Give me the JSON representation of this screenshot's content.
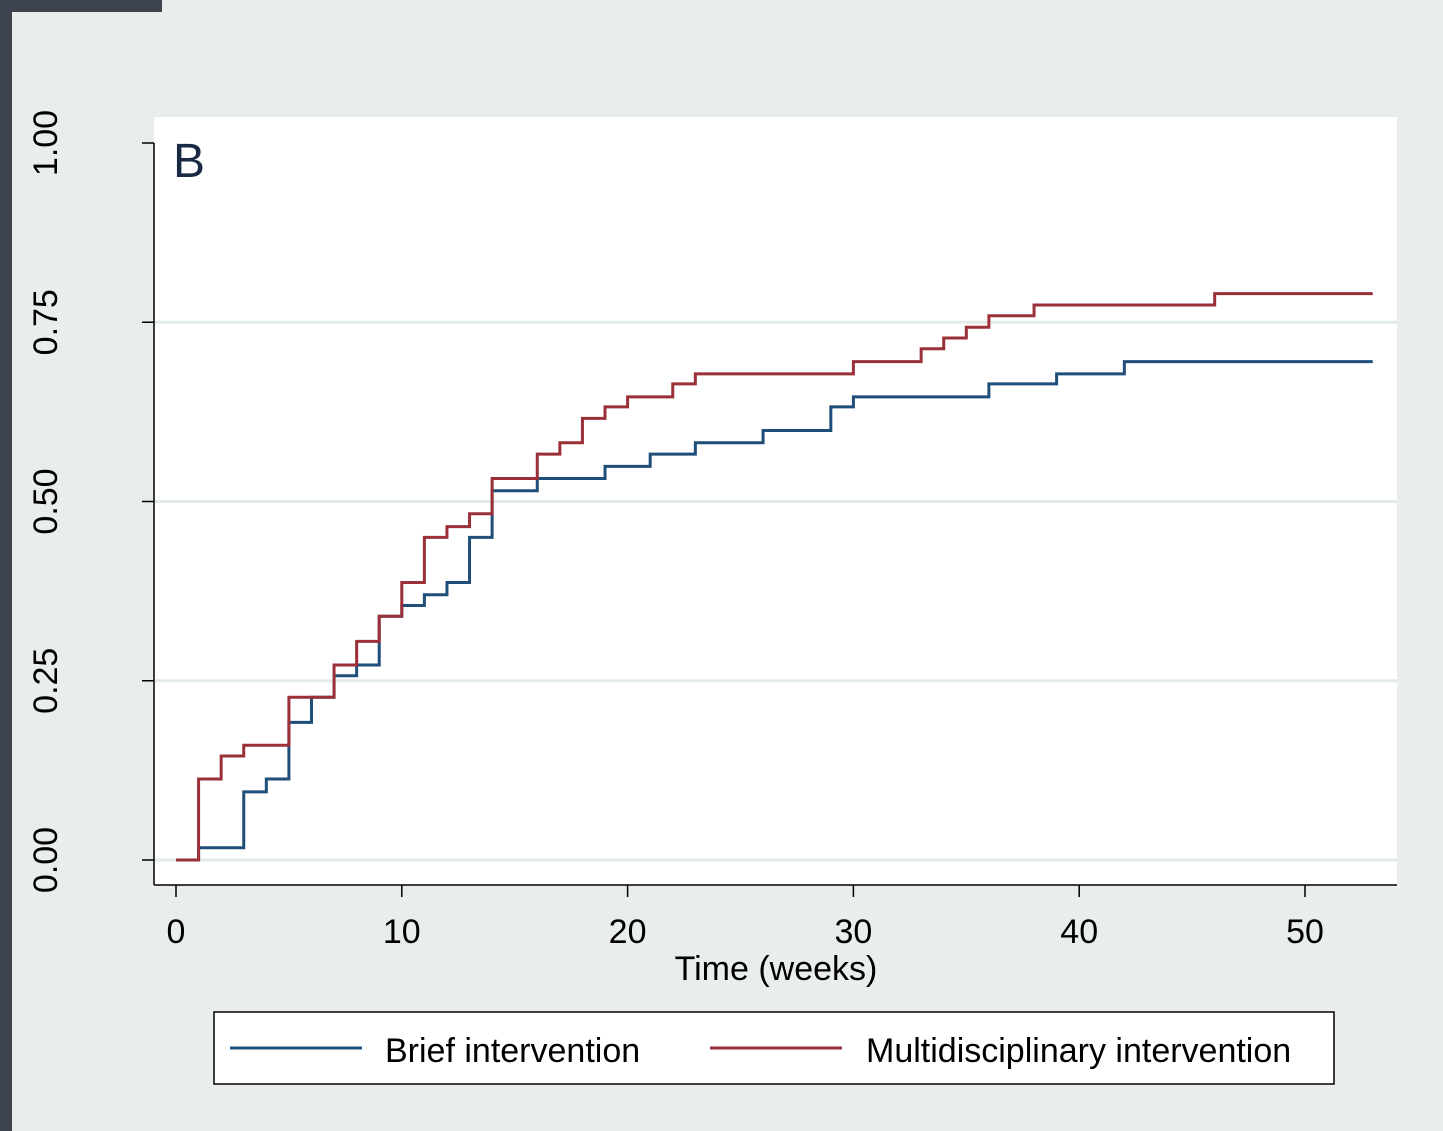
{
  "chart_data": {
    "type": "line",
    "step": true,
    "panel_label": "B",
    "title": "",
    "xlabel": "Time (weeks)",
    "ylabel": "",
    "xlim": [
      -1,
      54
    ],
    "ylim": [
      -0.01,
      1.0
    ],
    "xticks": [
      0,
      10,
      20,
      30,
      40,
      50
    ],
    "yticks": [
      0.0,
      0.25,
      0.5,
      0.75,
      1.0
    ],
    "xtick_labels": [
      "0",
      "10",
      "20",
      "30",
      "40",
      "50"
    ],
    "ytick_labels": [
      "0.00",
      "0.25",
      "0.50",
      "0.75",
      "1.00"
    ],
    "grid": "horizontal",
    "legend_position": "bottom",
    "series": [
      {
        "name": "Brief intervention",
        "color": "#1f4e79",
        "x": [
          0,
          1,
          3,
          4,
          5,
          6,
          7,
          8,
          9,
          10,
          11,
          12,
          13,
          14,
          16,
          19,
          21,
          23,
          26,
          29,
          30,
          36,
          39,
          42,
          53
        ],
        "y": [
          0.0,
          0.017,
          0.095,
          0.113,
          0.192,
          0.227,
          0.257,
          0.272,
          0.34,
          0.355,
          0.37,
          0.387,
          0.45,
          0.515,
          0.532,
          0.549,
          0.566,
          0.582,
          0.599,
          0.632,
          0.646,
          0.664,
          0.678,
          0.695,
          0.695
        ]
      },
      {
        "name": "Multidisciplinary intervention",
        "color": "#9b3039",
        "x": [
          0,
          1,
          2,
          3,
          5,
          7,
          8,
          9,
          10,
          11,
          12,
          13,
          14,
          16,
          17,
          18,
          19,
          20,
          22,
          23,
          30,
          33,
          34,
          35,
          36,
          38,
          46,
          53
        ],
        "y": [
          0.0,
          0.113,
          0.145,
          0.16,
          0.227,
          0.272,
          0.305,
          0.34,
          0.387,
          0.45,
          0.465,
          0.483,
          0.532,
          0.566,
          0.582,
          0.616,
          0.632,
          0.646,
          0.664,
          0.678,
          0.695,
          0.713,
          0.728,
          0.743,
          0.759,
          0.774,
          0.79,
          0.79
        ]
      }
    ]
  }
}
